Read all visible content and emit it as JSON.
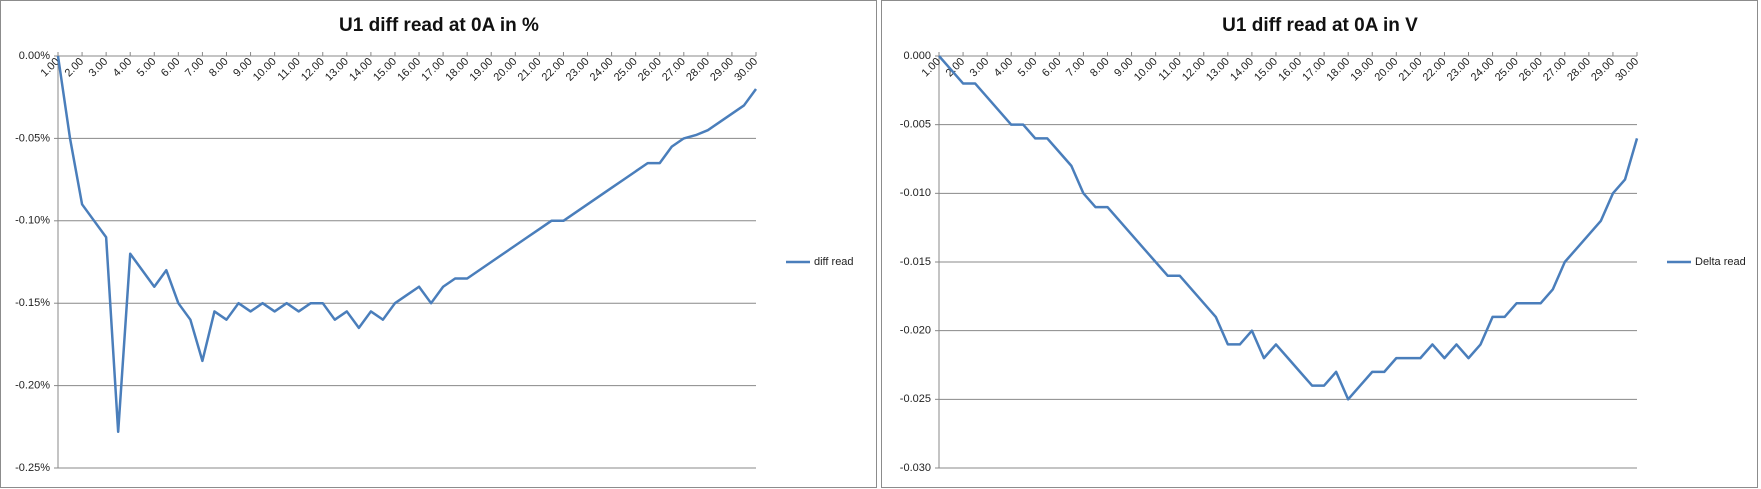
{
  "chart_data": [
    {
      "type": "line",
      "title": "U1 diff read at 0A in %",
      "x": [
        1,
        1.5,
        2,
        2.5,
        3,
        3.5,
        4,
        4.5,
        5,
        5.5,
        6,
        6.5,
        7,
        7.5,
        8,
        8.5,
        9,
        9.5,
        10,
        10.5,
        11,
        11.5,
        12,
        12.5,
        13,
        13.5,
        14,
        14.5,
        15,
        15.5,
        16,
        16.5,
        17,
        17.5,
        18,
        18.5,
        19,
        19.5,
        20,
        20.5,
        21,
        21.5,
        22,
        22.5,
        23,
        23.5,
        24,
        24.5,
        25,
        25.5,
        26,
        26.5,
        27,
        27.5,
        28,
        28.5,
        29,
        29.5,
        30
      ],
      "series": [
        {
          "name": "diff read",
          "color": "#4a7ebb",
          "values": [
            0,
            -0.05,
            -0.09,
            -0.1,
            -0.11,
            -0.228,
            -0.12,
            -0.13,
            -0.14,
            -0.13,
            -0.15,
            -0.16,
            -0.185,
            -0.155,
            -0.16,
            -0.15,
            -0.155,
            -0.15,
            -0.155,
            -0.15,
            -0.155,
            -0.15,
            -0.15,
            -0.16,
            -0.155,
            -0.165,
            -0.155,
            -0.16,
            -0.15,
            -0.145,
            -0.14,
            -0.15,
            -0.14,
            -0.135,
            -0.135,
            -0.13,
            -0.125,
            -0.12,
            -0.115,
            -0.11,
            -0.105,
            -0.1,
            -0.1,
            -0.095,
            -0.09,
            -0.085,
            -0.08,
            -0.075,
            -0.07,
            -0.065,
            -0.065,
            -0.055,
            -0.05,
            -0.048,
            -0.045,
            -0.04,
            -0.035,
            -0.03,
            -0.02
          ]
        }
      ],
      "xlim": [
        1,
        30
      ],
      "xticks": [
        {
          "value": 1,
          "label": "1.00"
        },
        {
          "value": 2,
          "label": "2.00"
        },
        {
          "value": 3,
          "label": "3.00"
        },
        {
          "value": 4,
          "label": "4.00"
        },
        {
          "value": 5,
          "label": "5.00"
        },
        {
          "value": 6,
          "label": "6.00"
        },
        {
          "value": 7,
          "label": "7.00"
        },
        {
          "value": 8,
          "label": "8.00"
        },
        {
          "value": 9,
          "label": "9.00"
        },
        {
          "value": 10,
          "label": "10.00"
        },
        {
          "value": 11,
          "label": "11.00"
        },
        {
          "value": 12,
          "label": "12.00"
        },
        {
          "value": 13,
          "label": "13.00"
        },
        {
          "value": 14,
          "label": "14.00"
        },
        {
          "value": 15,
          "label": "15.00"
        },
        {
          "value": 16,
          "label": "16.00"
        },
        {
          "value": 17,
          "label": "17.00"
        },
        {
          "value": 18,
          "label": "18.00"
        },
        {
          "value": 19,
          "label": "19.00"
        },
        {
          "value": 20,
          "label": "20.00"
        },
        {
          "value": 21,
          "label": "21.00"
        },
        {
          "value": 22,
          "label": "22.00"
        },
        {
          "value": 23,
          "label": "23.00"
        },
        {
          "value": 24,
          "label": "24.00"
        },
        {
          "value": 25,
          "label": "25.00"
        },
        {
          "value": 26,
          "label": "26.00"
        },
        {
          "value": 27,
          "label": "27.00"
        },
        {
          "value": 28,
          "label": "28.00"
        },
        {
          "value": 29,
          "label": "29.00"
        },
        {
          "value": 30,
          "label": "30.00"
        }
      ],
      "ylim": [
        -0.25,
        0
      ],
      "yticks": [
        {
          "value": 0,
          "label": "0.00%"
        },
        {
          "value": -0.05,
          "label": "-0.05%"
        },
        {
          "value": -0.1,
          "label": "-0.10%"
        },
        {
          "value": -0.15,
          "label": "-0.15%"
        },
        {
          "value": -0.2,
          "label": "-0.20%"
        },
        {
          "value": -0.25,
          "label": "-0.25%"
        }
      ],
      "grid": true,
      "legend": "right"
    },
    {
      "type": "line",
      "title": "U1 diff read at 0A in V",
      "x": [
        1,
        1.5,
        2,
        2.5,
        3,
        3.5,
        4,
        4.5,
        5,
        5.5,
        6,
        6.5,
        7,
        7.5,
        8,
        8.5,
        9,
        9.5,
        10,
        10.5,
        11,
        11.5,
        12,
        12.5,
        13,
        13.5,
        14,
        14.5,
        15,
        15.5,
        16,
        16.5,
        17,
        17.5,
        18,
        18.5,
        19,
        19.5,
        20,
        20.5,
        21,
        21.5,
        22,
        22.5,
        23,
        23.5,
        24,
        24.5,
        25,
        25.5,
        26,
        26.5,
        27,
        27.5,
        28,
        28.5,
        29,
        29.5,
        30
      ],
      "series": [
        {
          "name": "Delta read",
          "color": "#4a7ebb",
          "values": [
            0,
            -0.001,
            -0.002,
            -0.002,
            -0.003,
            -0.004,
            -0.005,
            -0.005,
            -0.006,
            -0.006,
            -0.007,
            -0.008,
            -0.01,
            -0.011,
            -0.011,
            -0.012,
            -0.013,
            -0.014,
            -0.015,
            -0.016,
            -0.016,
            -0.017,
            -0.018,
            -0.019,
            -0.021,
            -0.021,
            -0.02,
            -0.022,
            -0.021,
            -0.022,
            -0.023,
            -0.024,
            -0.024,
            -0.023,
            -0.025,
            -0.024,
            -0.023,
            -0.023,
            -0.022,
            -0.022,
            -0.022,
            -0.021,
            -0.022,
            -0.021,
            -0.022,
            -0.021,
            -0.019,
            -0.019,
            -0.018,
            -0.018,
            -0.018,
            -0.017,
            -0.015,
            -0.014,
            -0.013,
            -0.012,
            -0.01,
            -0.009,
            -0.006
          ]
        }
      ],
      "xlim": [
        1,
        30
      ],
      "xticks": [
        {
          "value": 1,
          "label": "1.00"
        },
        {
          "value": 2,
          "label": "2.00"
        },
        {
          "value": 3,
          "label": "3.00"
        },
        {
          "value": 4,
          "label": "4.00"
        },
        {
          "value": 5,
          "label": "5.00"
        },
        {
          "value": 6,
          "label": "6.00"
        },
        {
          "value": 7,
          "label": "7.00"
        },
        {
          "value": 8,
          "label": "8.00"
        },
        {
          "value": 9,
          "label": "9.00"
        },
        {
          "value": 10,
          "label": "10.00"
        },
        {
          "value": 11,
          "label": "11.00"
        },
        {
          "value": 12,
          "label": "12.00"
        },
        {
          "value": 13,
          "label": "13.00"
        },
        {
          "value": 14,
          "label": "14.00"
        },
        {
          "value": 15,
          "label": "15.00"
        },
        {
          "value": 16,
          "label": "16.00"
        },
        {
          "value": 17,
          "label": "17.00"
        },
        {
          "value": 18,
          "label": "18.00"
        },
        {
          "value": 19,
          "label": "19.00"
        },
        {
          "value": 20,
          "label": "20.00"
        },
        {
          "value": 21,
          "label": "21.00"
        },
        {
          "value": 22,
          "label": "22.00"
        },
        {
          "value": 23,
          "label": "23.00"
        },
        {
          "value": 24,
          "label": "24.00"
        },
        {
          "value": 25,
          "label": "25.00"
        },
        {
          "value": 26,
          "label": "26.00"
        },
        {
          "value": 27,
          "label": "27.00"
        },
        {
          "value": 28,
          "label": "28.00"
        },
        {
          "value": 29,
          "label": "29.00"
        },
        {
          "value": 30,
          "label": "30.00"
        }
      ],
      "ylim": [
        -0.03,
        0
      ],
      "yticks": [
        {
          "value": 0,
          "label": "0.000"
        },
        {
          "value": -0.005,
          "label": "-0.005"
        },
        {
          "value": -0.01,
          "label": "-0.010"
        },
        {
          "value": -0.015,
          "label": "-0.015"
        },
        {
          "value": -0.02,
          "label": "-0.020"
        },
        {
          "value": -0.025,
          "label": "-0.025"
        },
        {
          "value": -0.03,
          "label": "-0.030"
        }
      ],
      "grid": true,
      "legend": "right"
    }
  ]
}
